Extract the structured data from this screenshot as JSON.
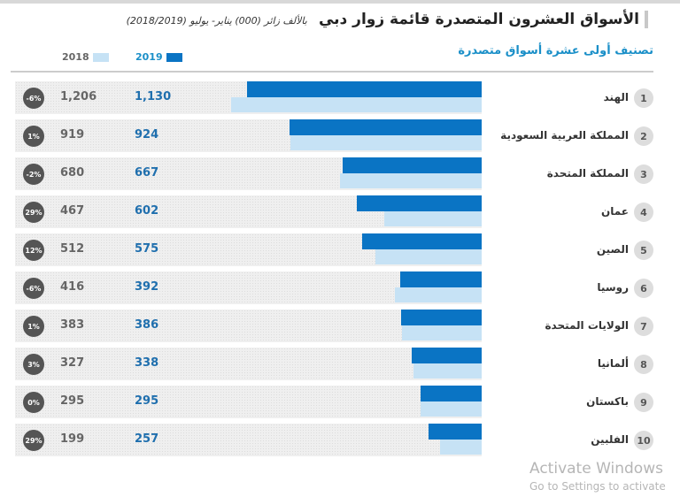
{
  "title": "الأسواق العشرون المتصدرة قائمة زوار دبي",
  "subtitle_note": "بالألف زائر (000) يناير- يوليو (2018/2019)",
  "section_title": "تصنيف أولى عشرة أسواق متصدرة",
  "colors": {
    "y2019": "#0a74c4",
    "y2018": "#c6e2f5"
  },
  "watermark": {
    "line1": "Activate Windows",
    "line2": "Go to Settings to activate"
  },
  "chart_data": {
    "type": "bar",
    "orientation": "horizontal",
    "legend": {
      "placement": "top-left",
      "items": [
        "2019",
        "2018"
      ]
    },
    "categories": [
      "الهند",
      "المملكة العربية السعودية",
      "المملكة المتحدة",
      "عمان",
      "الصين",
      "روسيا",
      "الولايات المتحدة",
      "ألمانيا",
      "باكستان",
      "الفلبين"
    ],
    "ranks": [
      "1",
      "2",
      "3",
      "4",
      "5",
      "6",
      "7",
      "8",
      "9",
      "10"
    ],
    "series": [
      {
        "name": "2019",
        "values": [
          1130,
          924,
          667,
          602,
          575,
          392,
          386,
          338,
          295,
          257
        ],
        "labels": [
          "1,130",
          "924",
          "667",
          "602",
          "575",
          "392",
          "386",
          "338",
          "295",
          "257"
        ]
      },
      {
        "name": "2018",
        "values": [
          1206,
          919,
          680,
          467,
          512,
          416,
          383,
          327,
          295,
          199
        ],
        "labels": [
          "1,206",
          "919",
          "680",
          "467",
          "512",
          "416",
          "383",
          "327",
          "295",
          "199"
        ]
      }
    ],
    "change": [
      "-6%",
      "1%",
      "-2%",
      "29%",
      "12%",
      "-6%",
      "1%",
      "3%",
      "0%",
      "29%"
    ]
  }
}
